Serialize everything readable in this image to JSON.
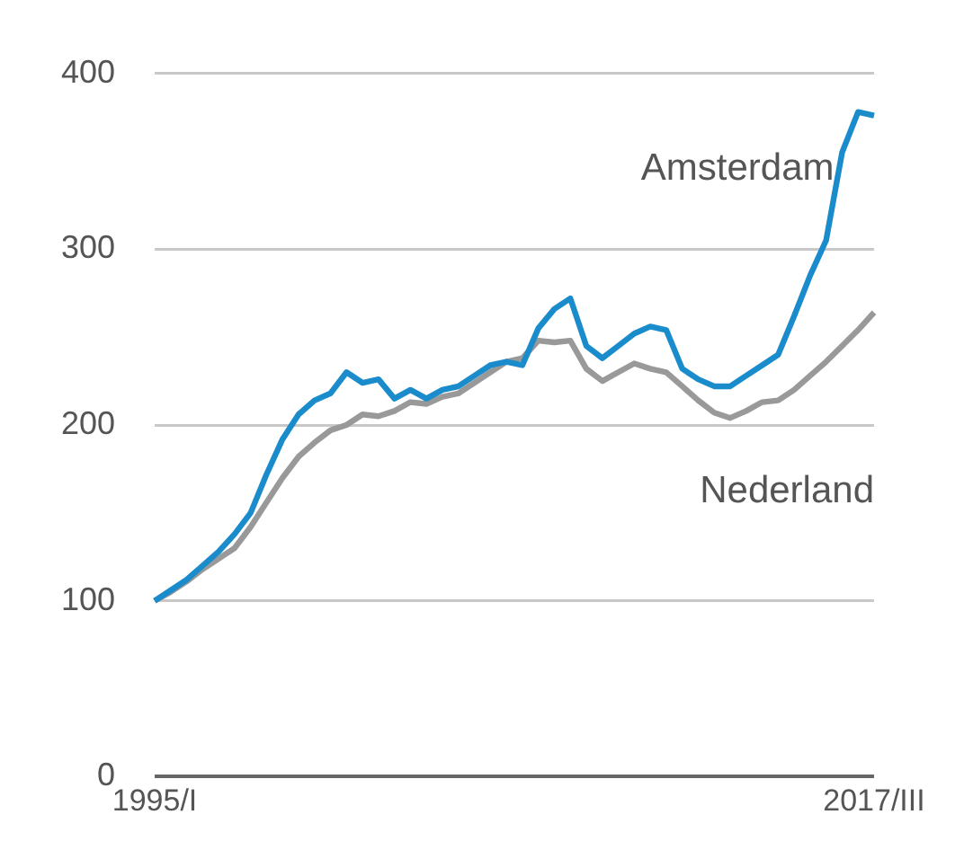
{
  "chart_data": {
    "type": "line",
    "categories": [
      "1995/I",
      null,
      null,
      null,
      null,
      null,
      null,
      null,
      null,
      null,
      null,
      null,
      null,
      null,
      null,
      null,
      null,
      null,
      null,
      null,
      null,
      null,
      null,
      null,
      null,
      null,
      null,
      null,
      null,
      null,
      null,
      null,
      null,
      null,
      null,
      null,
      null,
      null,
      null,
      null,
      null,
      null,
      null,
      null,
      null,
      "2017/III"
    ],
    "series": [
      {
        "name": "Amsterdam",
        "color": "#1a8ccc",
        "values": [
          100,
          106,
          112,
          120,
          128,
          138,
          150,
          172,
          192,
          206,
          214,
          218,
          230,
          224,
          226,
          215,
          220,
          215,
          220,
          222,
          228,
          234,
          236,
          234,
          255,
          266,
          272,
          245,
          238,
          245,
          252,
          256,
          254,
          232,
          226,
          222,
          222,
          228,
          234,
          240,
          262,
          285,
          305,
          355,
          378,
          376
        ]
      },
      {
        "name": "Nederland",
        "color": "#999999",
        "values": [
          100,
          105,
          111,
          118,
          124,
          130,
          142,
          156,
          170,
          182,
          190,
          197,
          200,
          206,
          205,
          208,
          213,
          212,
          216,
          218,
          224,
          230,
          236,
          238,
          248,
          247,
          248,
          232,
          225,
          230,
          235,
          232,
          230,
          222,
          214,
          207,
          204,
          208,
          213,
          214,
          220,
          228,
          236,
          245,
          254,
          264
        ]
      }
    ],
    "ylim": [
      0,
      400
    ],
    "yticks": [
      0,
      100,
      200,
      300,
      400
    ],
    "grid": "y",
    "legend": false,
    "marker": "none",
    "line_style": "solid"
  }
}
